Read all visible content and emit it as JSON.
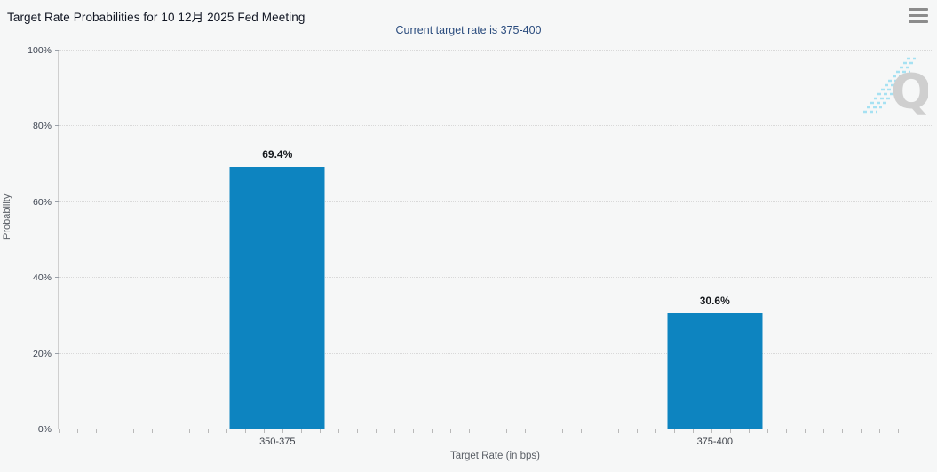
{
  "header": {
    "title": "Target Rate Probabilities for 10 12月 2025 Fed Meeting",
    "subtitle": "Current target rate is 375-400"
  },
  "watermark": {
    "letter": "Q"
  },
  "chart_data": {
    "type": "bar",
    "categories": [
      "350-375",
      "375-400"
    ],
    "values": [
      69.4,
      30.6
    ],
    "value_labels": [
      "69.4%",
      "30.6%"
    ],
    "title": "Target Rate Probabilities for 10 12月 2025 Fed Meeting",
    "subtitle": "Current target rate is 375-400",
    "xlabel": "Target Rate (in bps)",
    "ylabel": "Probability",
    "ylim": [
      0,
      100
    ],
    "yticks": [
      "0%",
      "20%",
      "40%",
      "60%",
      "80%",
      "100%"
    ],
    "grid": "horizontal-dotted",
    "legend": "none",
    "bar_color": "#0d84c0"
  },
  "colors": {
    "background": "#f6f7f7",
    "bar": "#0d84c0",
    "subtitle_text": "#2b4c7e",
    "gridline": "#d9d9d9",
    "watermark_gray": "#cbcbcb",
    "watermark_blue": "#9edff2"
  }
}
